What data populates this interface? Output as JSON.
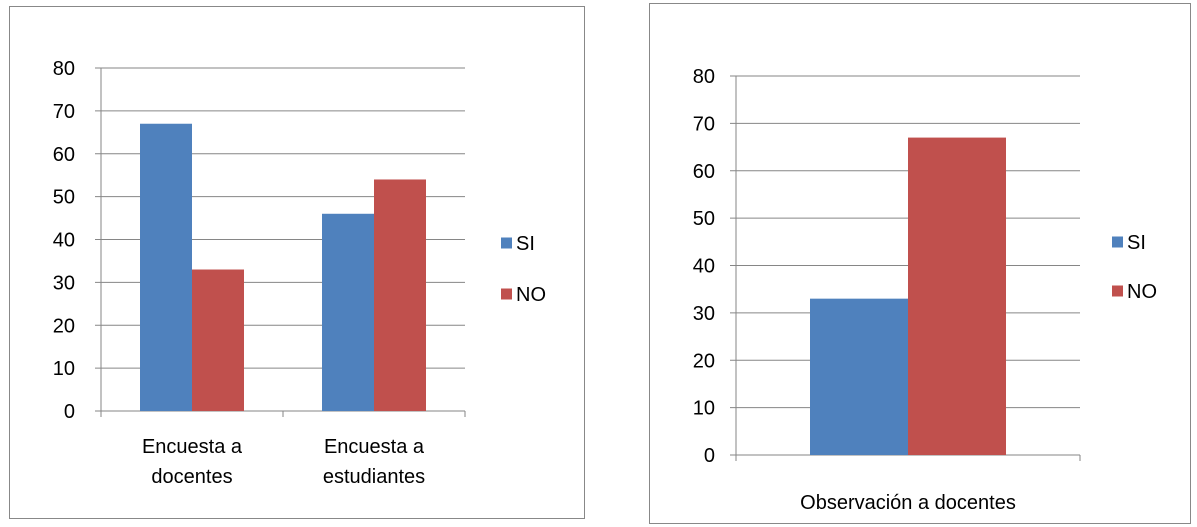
{
  "chart_data": [
    {
      "type": "bar",
      "categories": [
        [
          "Encuesta a",
          "docentes"
        ],
        [
          "Encuesta a",
          "estudiantes"
        ]
      ],
      "series": [
        {
          "name": "SI",
          "values": [
            67,
            46
          ],
          "color": "#4F81BD"
        },
        {
          "name": "NO",
          "values": [
            33,
            54
          ],
          "color": "#C0504D"
        }
      ],
      "yticks": [
        "0",
        "10",
        "20",
        "30",
        "40",
        "50",
        "60",
        "70",
        "80"
      ],
      "ylim": [
        0,
        80
      ],
      "grid": true,
      "legend": "right"
    },
    {
      "type": "bar",
      "categories": [
        [
          "Observación a docentes"
        ]
      ],
      "series": [
        {
          "name": "SI",
          "values": [
            33
          ],
          "color": "#4F81BD"
        },
        {
          "name": "NO",
          "values": [
            67
          ],
          "color": "#C0504D"
        }
      ],
      "yticks": [
        "0",
        "10",
        "20",
        "30",
        "40",
        "50",
        "60",
        "70",
        "80"
      ],
      "ylim": [
        0,
        80
      ],
      "grid": true,
      "legend": "right"
    }
  ]
}
